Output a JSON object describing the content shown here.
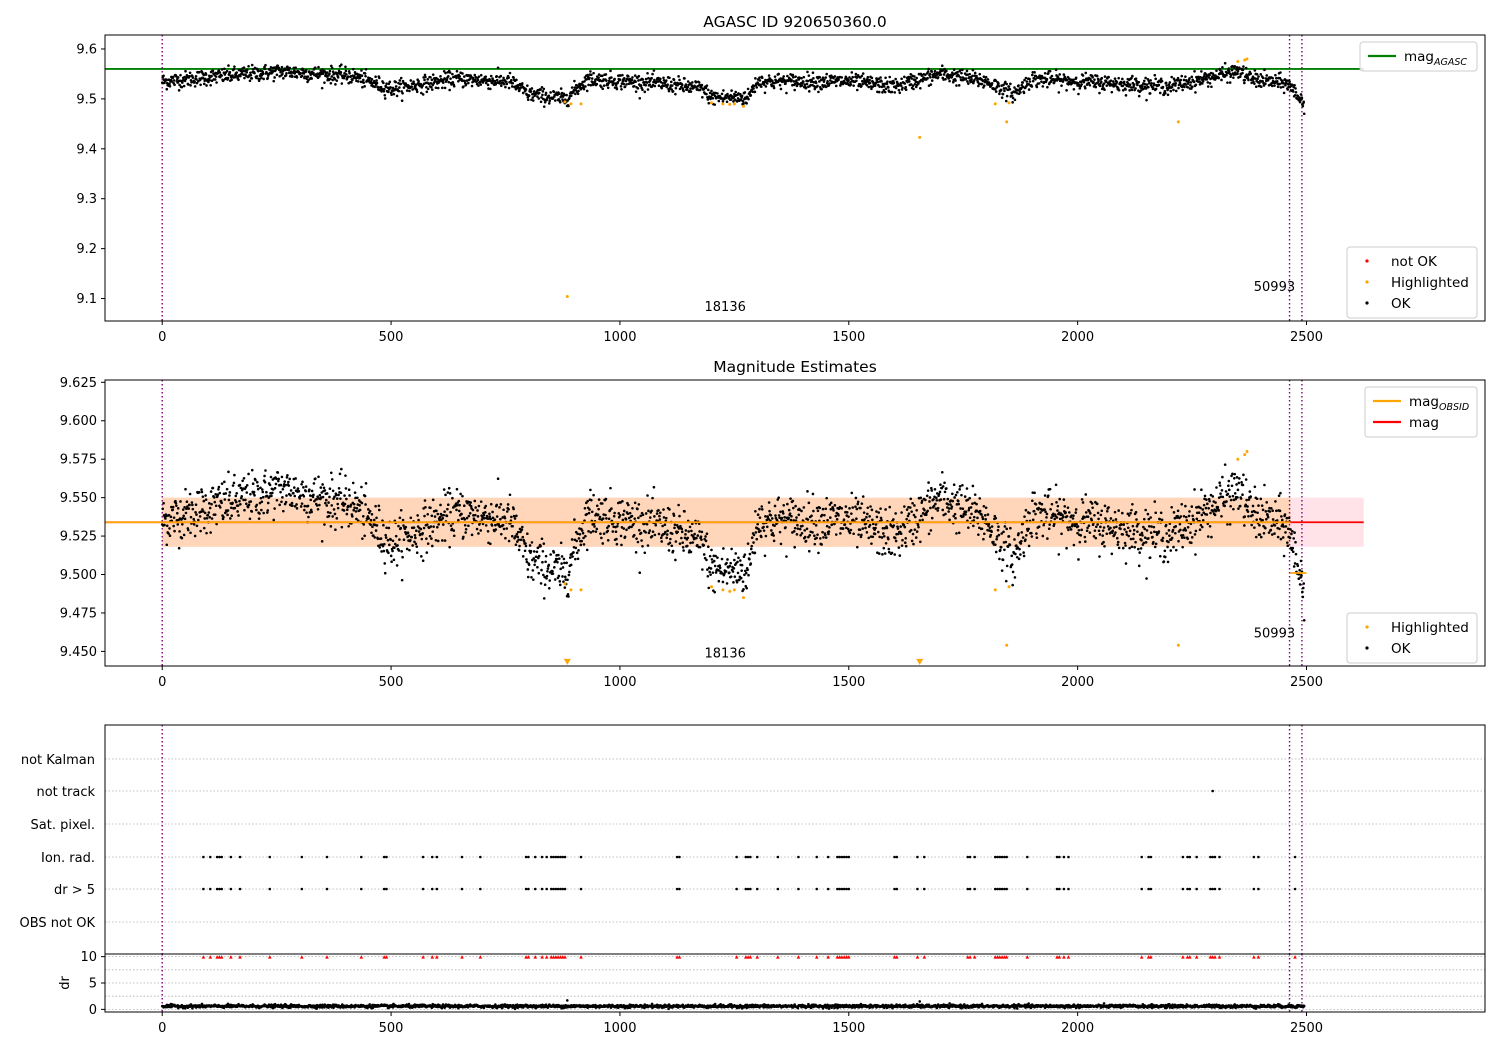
{
  "chart_data": [
    {
      "type": "scatter",
      "title": "AGASC ID 920650360.0",
      "xlim": [
        -125,
        2890
      ],
      "ylim": [
        9.055,
        9.628
      ],
      "xticks": [
        "0",
        "500",
        "1000",
        "1500",
        "2000",
        "2500"
      ],
      "xtick_values": [
        0,
        500,
        1000,
        1500,
        2000,
        2500
      ],
      "yticks": [
        "9.1",
        "9.2",
        "9.3",
        "9.4",
        "9.5",
        "9.6"
      ],
      "ytick_values": [
        9.1,
        9.2,
        9.3,
        9.4,
        9.5,
        9.6
      ],
      "vlines": [
        0,
        2463,
        2490
      ],
      "annotations": [
        {
          "text": "18136",
          "x": 1230,
          "y": 9.075
        },
        {
          "text": "50993",
          "x": 2430,
          "y": 9.115
        }
      ],
      "hlines": [
        {
          "name": "mag_AGASC",
          "y": 9.56,
          "x_end": 2625,
          "color": "#008000"
        }
      ],
      "legends": [
        {
          "position": "top-right",
          "entries": [
            {
              "label": "mag",
              "sub": "AGASC",
              "kind": "line",
              "color": "#008000"
            }
          ]
        },
        {
          "position": "lower-right",
          "entries": [
            {
              "label": "not OK",
              "kind": "dot",
              "color": "#ff0000"
            },
            {
              "label": "Highlighted",
              "kind": "dot",
              "color": "#ffa500"
            },
            {
              "label": "OK",
              "kind": "dot",
              "color": "#000000"
            }
          ]
        }
      ],
      "series": [
        {
          "name": "OK",
          "color": "#000000",
          "x_range": [
            0,
            2495
          ],
          "count": 2500,
          "baseline": 9.535,
          "segments": [
            [
              0,
              9.535
            ],
            [
              120,
              9.545
            ],
            [
              260,
              9.555
            ],
            [
              420,
              9.545
            ],
            [
              500,
              9.52
            ],
            [
              640,
              9.54
            ],
            [
              760,
              9.535
            ],
            [
              800,
              9.51
            ],
            [
              880,
              9.5
            ],
            [
              930,
              9.54
            ],
            [
              1100,
              9.53
            ],
            [
              1180,
              9.52
            ],
            [
              1200,
              9.503
            ],
            [
              1280,
              9.503
            ],
            [
              1300,
              9.535
            ],
            [
              1500,
              9.535
            ],
            [
              1600,
              9.525
            ],
            [
              1700,
              9.55
            ],
            [
              1800,
              9.535
            ],
            [
              1860,
              9.51
            ],
            [
              1900,
              9.54
            ],
            [
              2100,
              9.53
            ],
            [
              2200,
              9.525
            ],
            [
              2350,
              9.555
            ],
            [
              2380,
              9.54
            ],
            [
              2460,
              9.53
            ],
            [
              2495,
              9.49
            ]
          ]
        },
        {
          "name": "Highlighted",
          "color": "#ffa500",
          "points": [
            [
              885,
              9.104
            ],
            [
              880,
              9.494
            ],
            [
              893,
              9.49
            ],
            [
              915,
              9.49
            ],
            [
              1200,
              9.492
            ],
            [
              1225,
              9.49
            ],
            [
              1240,
              9.489
            ],
            [
              1250,
              9.49
            ],
            [
              1270,
              9.485
            ],
            [
              1655,
              9.423
            ],
            [
              1820,
              9.49
            ],
            [
              1845,
              9.454
            ],
            [
              1850,
              9.492
            ],
            [
              2220,
              9.454
            ],
            [
              2350,
              9.575
            ],
            [
              2365,
              9.578
            ],
            [
              2370,
              9.58
            ]
          ]
        }
      ]
    },
    {
      "type": "scatter",
      "title": "Magnitude Estimates",
      "xlim": [
        -125,
        2890
      ],
      "ylim": [
        9.4405,
        9.6265
      ],
      "xticks": [
        "0",
        "500",
        "1000",
        "1500",
        "2000",
        "2500"
      ],
      "xtick_values": [
        0,
        500,
        1000,
        1500,
        2000,
        2500
      ],
      "yticks": [
        "9.450",
        "9.475",
        "9.500",
        "9.525",
        "9.550",
        "9.575",
        "9.600",
        "9.625"
      ],
      "ytick_values": [
        9.45,
        9.475,
        9.5,
        9.525,
        9.55,
        9.575,
        9.6,
        9.625
      ],
      "vlines": [
        0,
        2463,
        2490
      ],
      "annotations": [
        {
          "text": "18136",
          "x": 1230,
          "y": 9.446
        },
        {
          "text": "50993",
          "x": 2430,
          "y": 9.459
        }
      ],
      "bands": [
        {
          "y0": 9.518,
          "y1": 9.55,
          "x0": 0,
          "x1": 2625,
          "color": "#ffc0cb",
          "opacity": 0.45
        },
        {
          "y0": 9.518,
          "y1": 9.55,
          "x0": 0,
          "x1": 2465,
          "color": "#ffa500",
          "opacity": 0.2
        }
      ],
      "hlines": [
        {
          "name": "mag",
          "y": 9.534,
          "x_end": 2625,
          "color": "#ff0000"
        },
        {
          "name": "mag_OBSID",
          "y": 9.534,
          "x_end": 2465,
          "color": "#ffa500"
        },
        {
          "name": "mag_OBSID_tail",
          "y": 9.501,
          "x_start": 2465,
          "x_end": 2500,
          "color": "#ffa500"
        }
      ],
      "legends": [
        {
          "position": "top-right",
          "entries": [
            {
              "label": "mag",
              "sub": "OBSID",
              "kind": "line",
              "color": "#ffa500"
            },
            {
              "label": "mag",
              "kind": "line",
              "color": "#ff0000"
            }
          ]
        },
        {
          "position": "lower-right",
          "entries": [
            {
              "label": "Highlighted",
              "kind": "dot",
              "color": "#ffa500"
            },
            {
              "label": "OK",
              "kind": "dot",
              "color": "#000000"
            }
          ]
        }
      ],
      "arrows": [
        [
          885,
          9.4425
        ],
        [
          1655,
          9.4425
        ]
      ]
    },
    {
      "type": "scatter",
      "xlim": [
        -125,
        2890
      ],
      "categories": [
        "not Kalman",
        "not track",
        "Sat. pixel.",
        "Ion. rad.",
        "dr > 5",
        "OBS not OK"
      ],
      "flag_points": {
        "not track": [
          2295
        ],
        "Ion. rad.": [
          90,
          105,
          120,
          125,
          130,
          150,
          170,
          235,
          305,
          360,
          435,
          485,
          490,
          570,
          590,
          600,
          655,
          695,
          795,
          800,
          815,
          830,
          840,
          850,
          855,
          860,
          865,
          870,
          875,
          880,
          915,
          1125,
          1130,
          1255,
          1275,
          1280,
          1285,
          1300,
          1345,
          1390,
          1430,
          1455,
          1475,
          1480,
          1485,
          1490,
          1495,
          1500,
          1600,
          1605,
          1650,
          1665,
          1760,
          1765,
          1775,
          1820,
          1825,
          1830,
          1835,
          1840,
          1845,
          1890,
          1955,
          1960,
          1970,
          1980,
          2140,
          2155,
          2160,
          2230,
          2240,
          2245,
          2260,
          2290,
          2295,
          2300,
          2310,
          2385,
          2395,
          2475
        ],
        "dr > 5": [
          90,
          105,
          120,
          125,
          130,
          150,
          170,
          235,
          305,
          360,
          435,
          485,
          490,
          570,
          590,
          600,
          655,
          695,
          795,
          800,
          815,
          830,
          840,
          850,
          855,
          860,
          865,
          870,
          875,
          880,
          915,
          1125,
          1130,
          1255,
          1275,
          1280,
          1285,
          1300,
          1345,
          1390,
          1430,
          1455,
          1475,
          1480,
          1485,
          1490,
          1495,
          1500,
          1600,
          1605,
          1650,
          1665,
          1760,
          1765,
          1775,
          1820,
          1825,
          1830,
          1835,
          1840,
          1845,
          1890,
          1955,
          1960,
          1970,
          1980,
          2140,
          2155,
          2160,
          2230,
          2240,
          2245,
          2260,
          2290,
          2295,
          2300,
          2310,
          2385,
          2395,
          2475
        ]
      },
      "vlines": [
        0,
        2463,
        2490
      ]
    },
    {
      "type": "scatter",
      "ylabel": "dr",
      "xlim": [
        -125,
        2890
      ],
      "ylim": [
        -0.5,
        10.5
      ],
      "xticks": [
        "0",
        "500",
        "1000",
        "1500",
        "2000",
        "2500"
      ],
      "xtick_values": [
        0,
        500,
        1000,
        1500,
        2000,
        2500
      ],
      "yticks": [
        "0",
        "5",
        "10"
      ],
      "ytick_values": [
        0,
        5,
        10
      ],
      "grid_y": [
        0,
        2.5,
        5,
        7.5,
        10
      ],
      "hline_black": 10.5,
      "vlines": [
        0,
        2463,
        2490
      ],
      "red_marks_y": 9.9,
      "red_marks_x": [
        90,
        105,
        120,
        125,
        130,
        150,
        170,
        235,
        305,
        360,
        435,
        485,
        490,
        570,
        590,
        600,
        655,
        695,
        795,
        800,
        815,
        830,
        840,
        850,
        855,
        860,
        865,
        870,
        875,
        880,
        915,
        1125,
        1130,
        1255,
        1275,
        1280,
        1285,
        1300,
        1345,
        1390,
        1430,
        1455,
        1475,
        1480,
        1485,
        1490,
        1495,
        1500,
        1600,
        1605,
        1650,
        1665,
        1760,
        1765,
        1775,
        1820,
        1825,
        1830,
        1835,
        1840,
        1845,
        1890,
        1955,
        1960,
        1970,
        1980,
        2140,
        2155,
        2160,
        2230,
        2240,
        2245,
        2260,
        2290,
        2295,
        2300,
        2310,
        2385,
        2395,
        2475
      ],
      "outliers": [
        [
          885,
          1.7
        ],
        [
          1655,
          1.5
        ]
      ],
      "baseline_dr": 0.6
    }
  ]
}
